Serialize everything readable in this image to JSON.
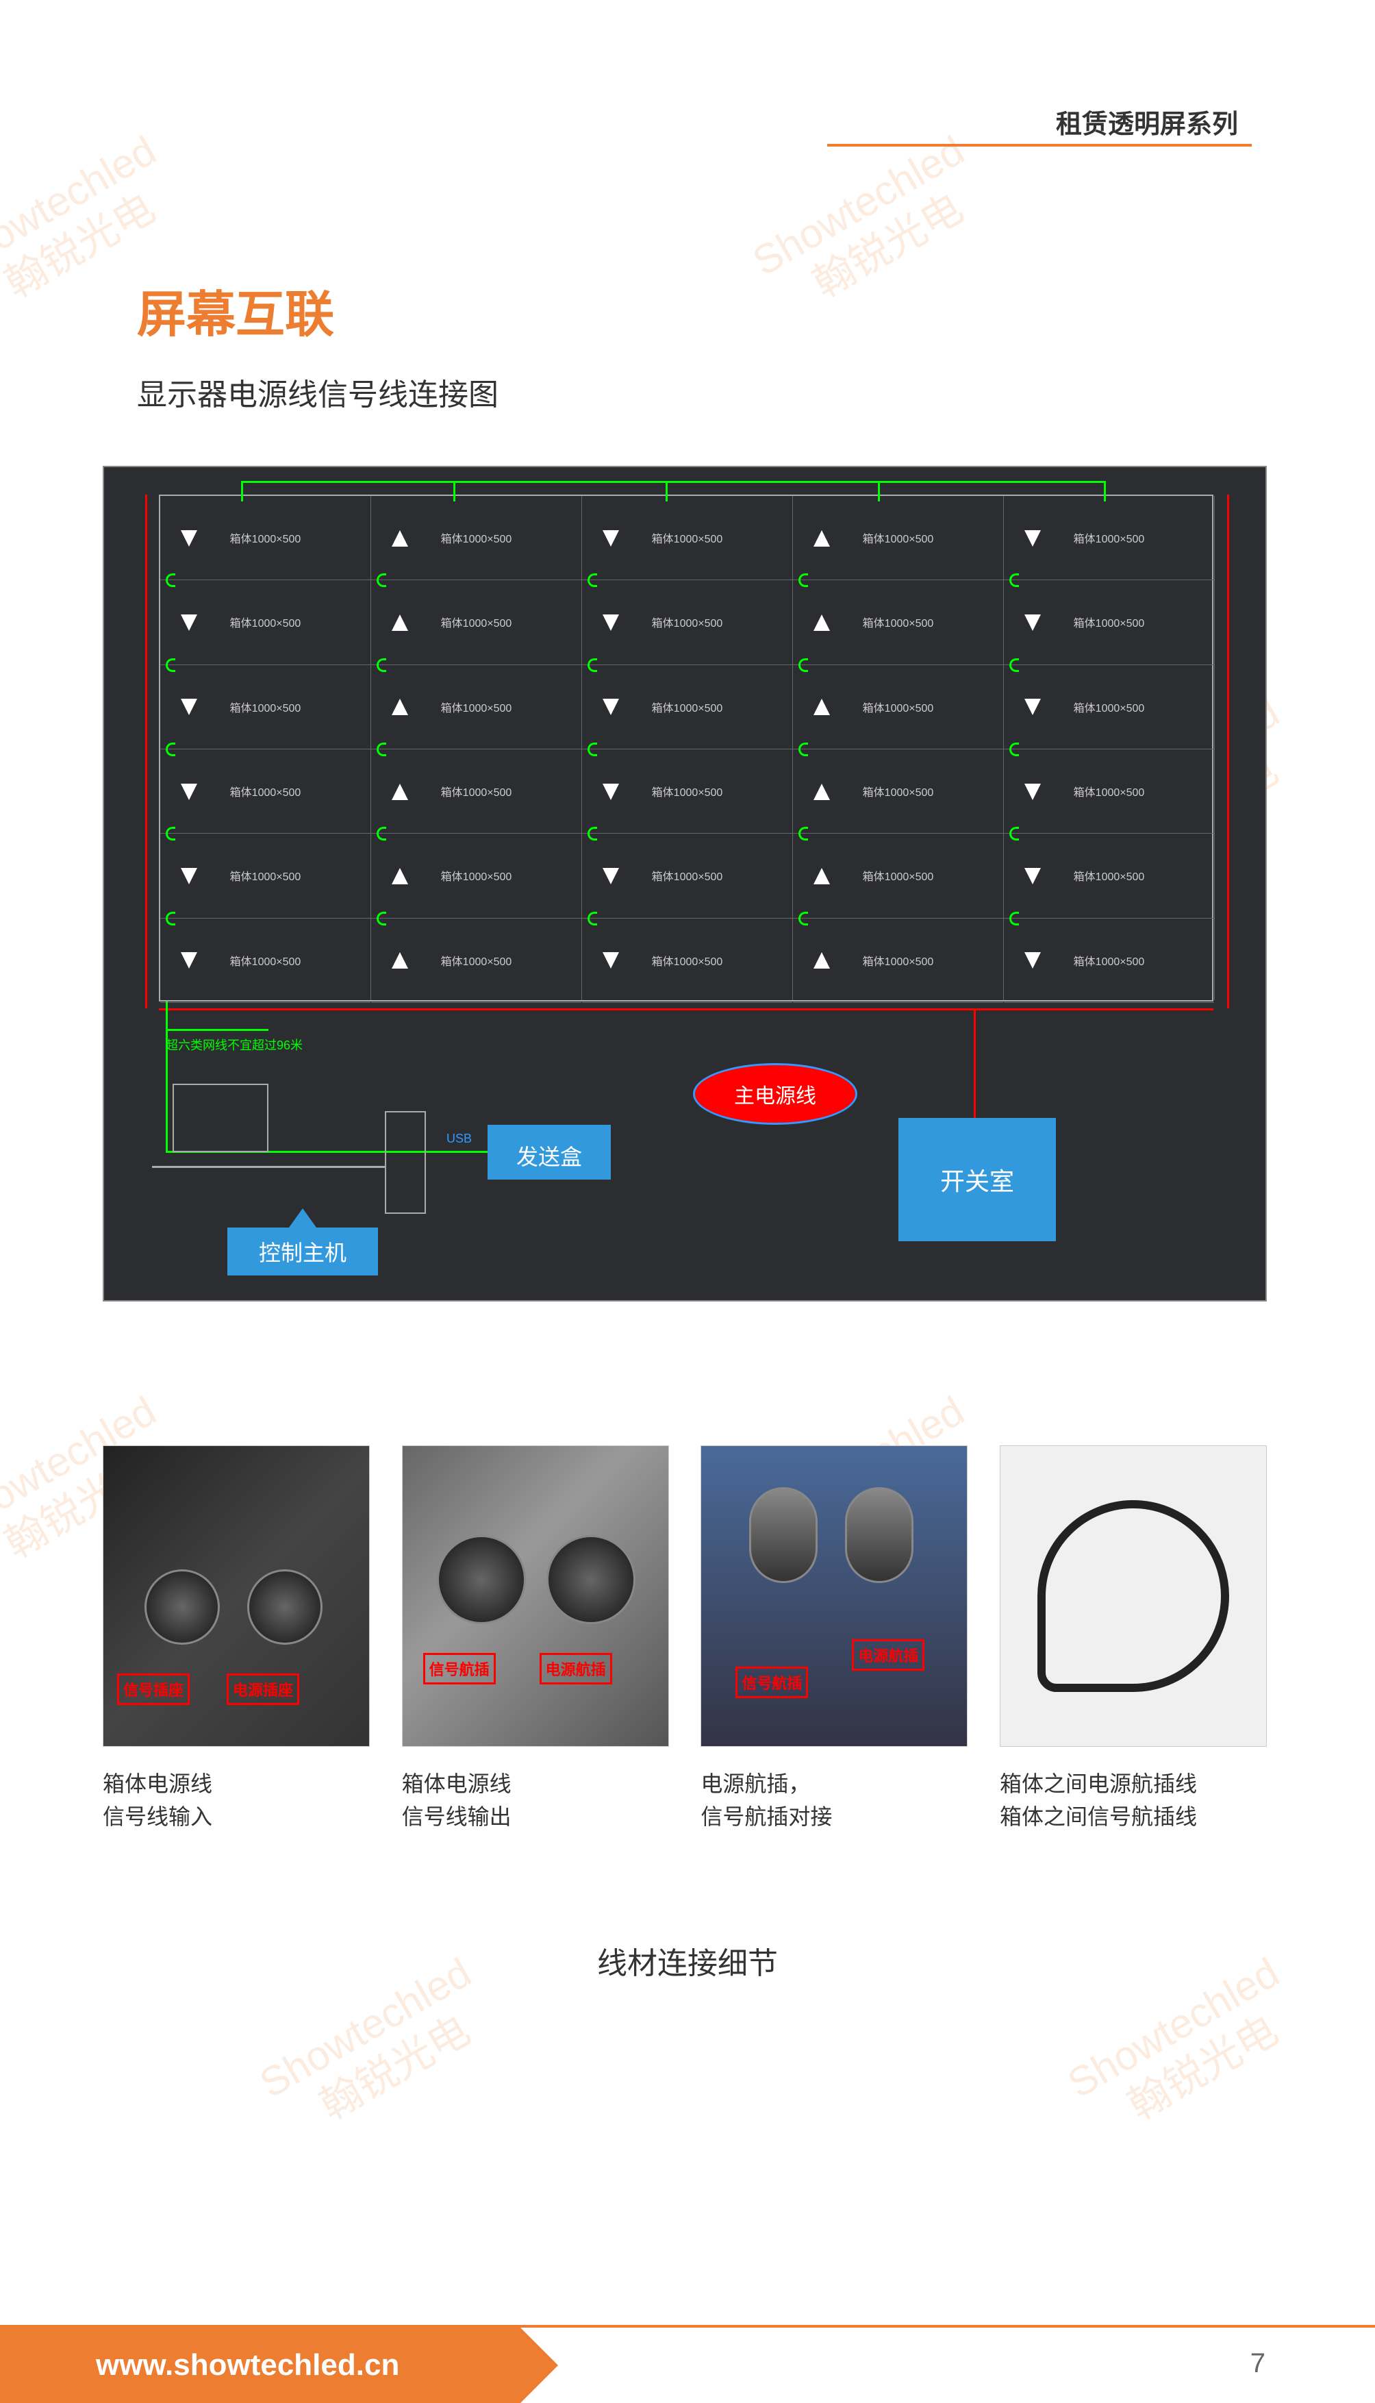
{
  "header": {
    "series_label": "租赁透明屏系列"
  },
  "title": "屏幕互联",
  "subtitle": "显示器电源线信号线连接图",
  "diagram": {
    "background_color": "#2b2d30",
    "grid_cols": 5,
    "grid_rows": 6,
    "panel_label": "箱体1000×500",
    "note": "超六类网线不宜超过96米",
    "usb_label": "USB",
    "main_power": "主电源线",
    "send_box": "发送盒",
    "switch_room": "开关室",
    "control_host": "控制主机",
    "signal_color": "#00ff00",
    "power_color": "#ff0000",
    "label_box_color": "#3399dd"
  },
  "photos": [
    {
      "labels": [
        "信号插座",
        "电源插座"
      ],
      "caption_l1": "箱体电源线",
      "caption_l2": "信号线输入"
    },
    {
      "labels": [
        "信号航插",
        "电源航插"
      ],
      "caption_l1": "箱体电源线",
      "caption_l2": "信号线输出"
    },
    {
      "labels": [
        "信号航插",
        "电源航插"
      ],
      "caption_l1": "电源航插，",
      "caption_l2": "信号航插对接"
    },
    {
      "labels": [],
      "caption_l1": "箱体之间电源航插线",
      "caption_l2": "箱体之间信号航插线"
    }
  ],
  "section_caption": "线材连接细节",
  "footer": {
    "url": "www.showtechled.cn",
    "page": "7"
  },
  "watermark": {
    "line1": "Showtechled",
    "line2": "翰锐光电",
    "color": "rgba(237,125,49,0.15)"
  },
  "colors": {
    "accent": "#ed7d31",
    "text": "#333333",
    "red_label_border": "#ff0000"
  }
}
